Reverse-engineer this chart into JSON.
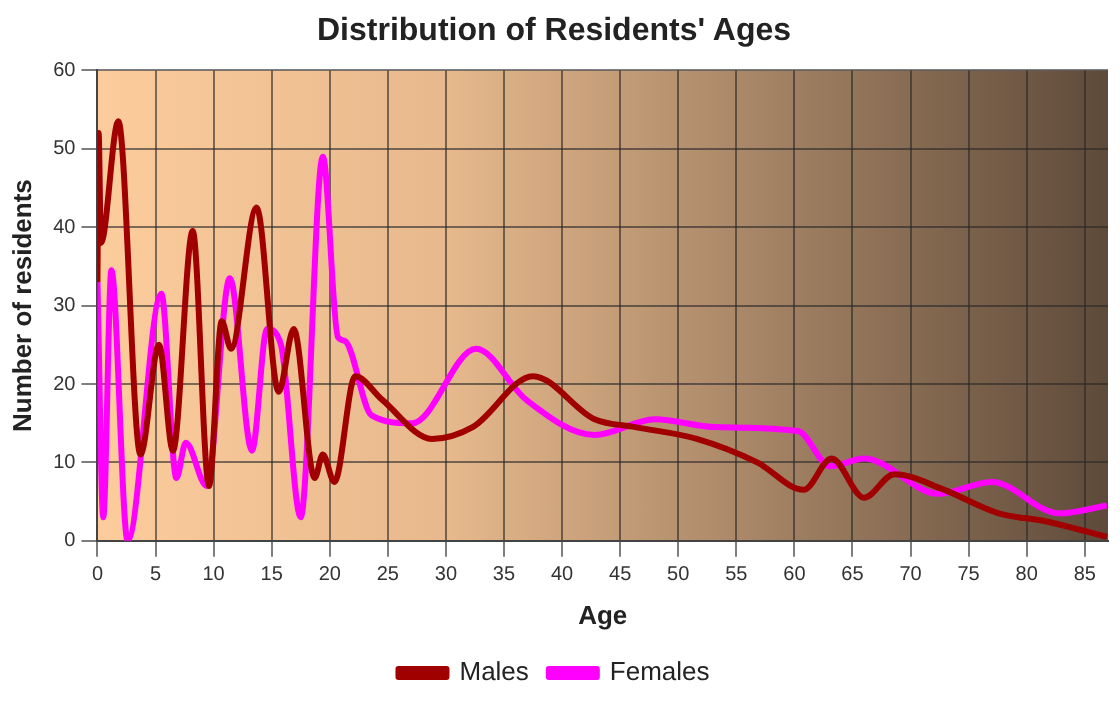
{
  "chart_data": {
    "type": "line",
    "title": "Distribution of Residents' Ages",
    "xlabel": "Age",
    "ylabel": "Number of residents",
    "xlim": [
      0,
      87
    ],
    "xticks": [
      0,
      5,
      10,
      15,
      20,
      25,
      30,
      35,
      40,
      45,
      50,
      55,
      60,
      65,
      70,
      75,
      80,
      85
    ],
    "ylim": [
      0,
      60
    ],
    "yticks": [
      0,
      10,
      20,
      30,
      40,
      50,
      60
    ],
    "grid": true,
    "legend": "bottom",
    "marker": "none",
    "line_style": "solid",
    "series": [
      {
        "name": "Males",
        "color": "#a00000",
        "x": [
          0,
          0.1,
          0.3,
          1.8,
          3.7,
          5.3,
          6.5,
          8.2,
          9.6,
          10.7,
          11.5,
          13.7,
          15.6,
          16.9,
          18.7,
          19.4,
          20.4,
          22.2,
          24.5,
          28.8,
          32.3,
          37.5,
          42.8,
          46.3,
          51.6,
          56.8,
          60.8,
          63.2,
          66,
          68.6,
          72.9,
          77.6,
          81.6,
          86.9
        ],
        "values": [
          33,
          52,
          38,
          53.5,
          11,
          25,
          11.5,
          39.5,
          7,
          28,
          24.5,
          42.5,
          19,
          27,
          8,
          11,
          7.5,
          21,
          18,
          13,
          14.5,
          21,
          15.5,
          14.5,
          13,
          10,
          6.5,
          10.5,
          5.5,
          8.5,
          6.5,
          3.5,
          2.5,
          0.5
        ]
      },
      {
        "name": "Females",
        "color": "#ff00ff",
        "x": [
          0,
          0.5,
          1.2,
          2.6,
          5.5,
          6.8,
          7.6,
          9.4,
          11.4,
          13.3,
          14.6,
          15.8,
          17.5,
          19.4,
          20.7,
          21.3,
          23.6,
          27.1,
          32.6,
          36.9,
          42.8,
          48,
          53.2,
          60.3,
          63.1,
          66,
          72.4,
          77,
          82.8,
          86.9
        ],
        "values": [
          33,
          3,
          34.5,
          0,
          31.5,
          8,
          12.5,
          7,
          33.5,
          11.5,
          27,
          25,
          3,
          49,
          26,
          25.5,
          16,
          15,
          24.5,
          18,
          13.5,
          15.5,
          14.5,
          14,
          9.5,
          10.5,
          6,
          7.5,
          3.5,
          4.5
        ]
      }
    ]
  }
}
